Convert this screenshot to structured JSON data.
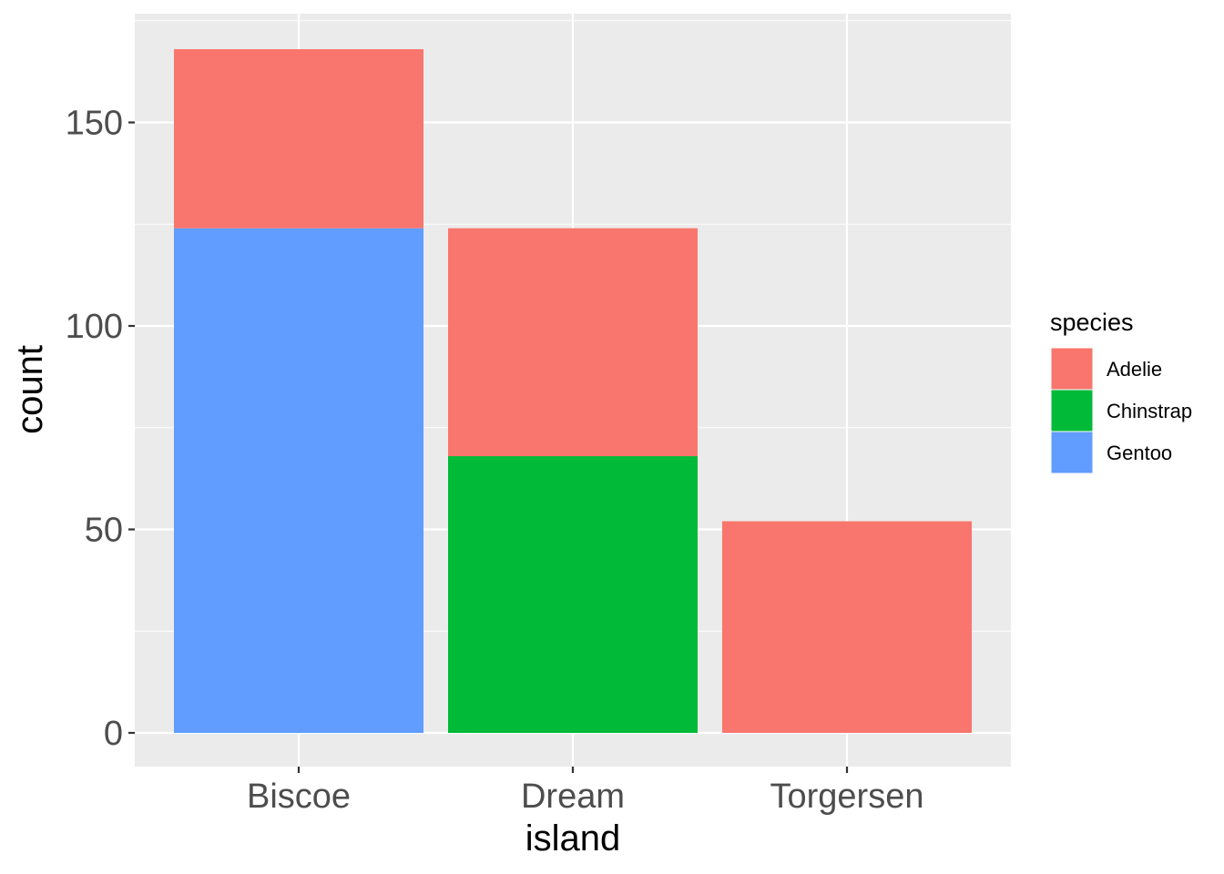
{
  "chart_data": {
    "type": "bar",
    "stacked": true,
    "title": "",
    "xlabel": "island",
    "ylabel": "count",
    "categories": [
      "Biscoe",
      "Dream",
      "Torgersen"
    ],
    "ylim": [
      0,
      172
    ],
    "yticks": [
      0,
      50,
      100,
      150
    ],
    "grid": true,
    "series": [
      {
        "name": "Gentoo",
        "values": [
          124,
          0,
          0
        ],
        "color": "#619CFF"
      },
      {
        "name": "Chinstrap",
        "values": [
          0,
          68,
          0
        ],
        "color": "#00BA38"
      },
      {
        "name": "Adelie",
        "values": [
          44,
          56,
          52
        ],
        "color": "#F8766D"
      }
    ],
    "legend": {
      "title": "species",
      "position": "right",
      "items": [
        {
          "label": "Adelie",
          "color": "#F8766D"
        },
        {
          "label": "Chinstrap",
          "color": "#00BA38"
        },
        {
          "label": "Gentoo",
          "color": "#619CFF"
        }
      ]
    },
    "panel_background": "#EBEBEB",
    "grid_color": "#FFFFFF"
  }
}
